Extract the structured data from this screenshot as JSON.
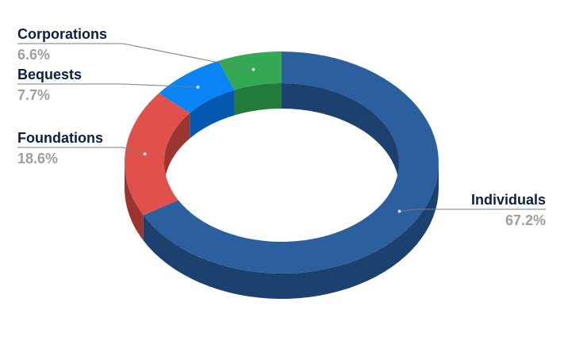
{
  "chart_data": {
    "type": "pie",
    "variant": "3d-donut",
    "categories": [
      "Individuals",
      "Foundations",
      "Bequests",
      "Corporations"
    ],
    "values": [
      67.2,
      18.6,
      7.7,
      6.6
    ],
    "value_labels": [
      "67.2%",
      "18.6%",
      "7.7%",
      "6.6%"
    ],
    "colors": [
      "#2c5f9e",
      "#e0514b",
      "#0a84f5",
      "#34a853"
    ],
    "side_colors": [
      "#1d416f",
      "#9c3430",
      "#0558b0",
      "#227a3b"
    ],
    "title": "",
    "legend": "none"
  }
}
